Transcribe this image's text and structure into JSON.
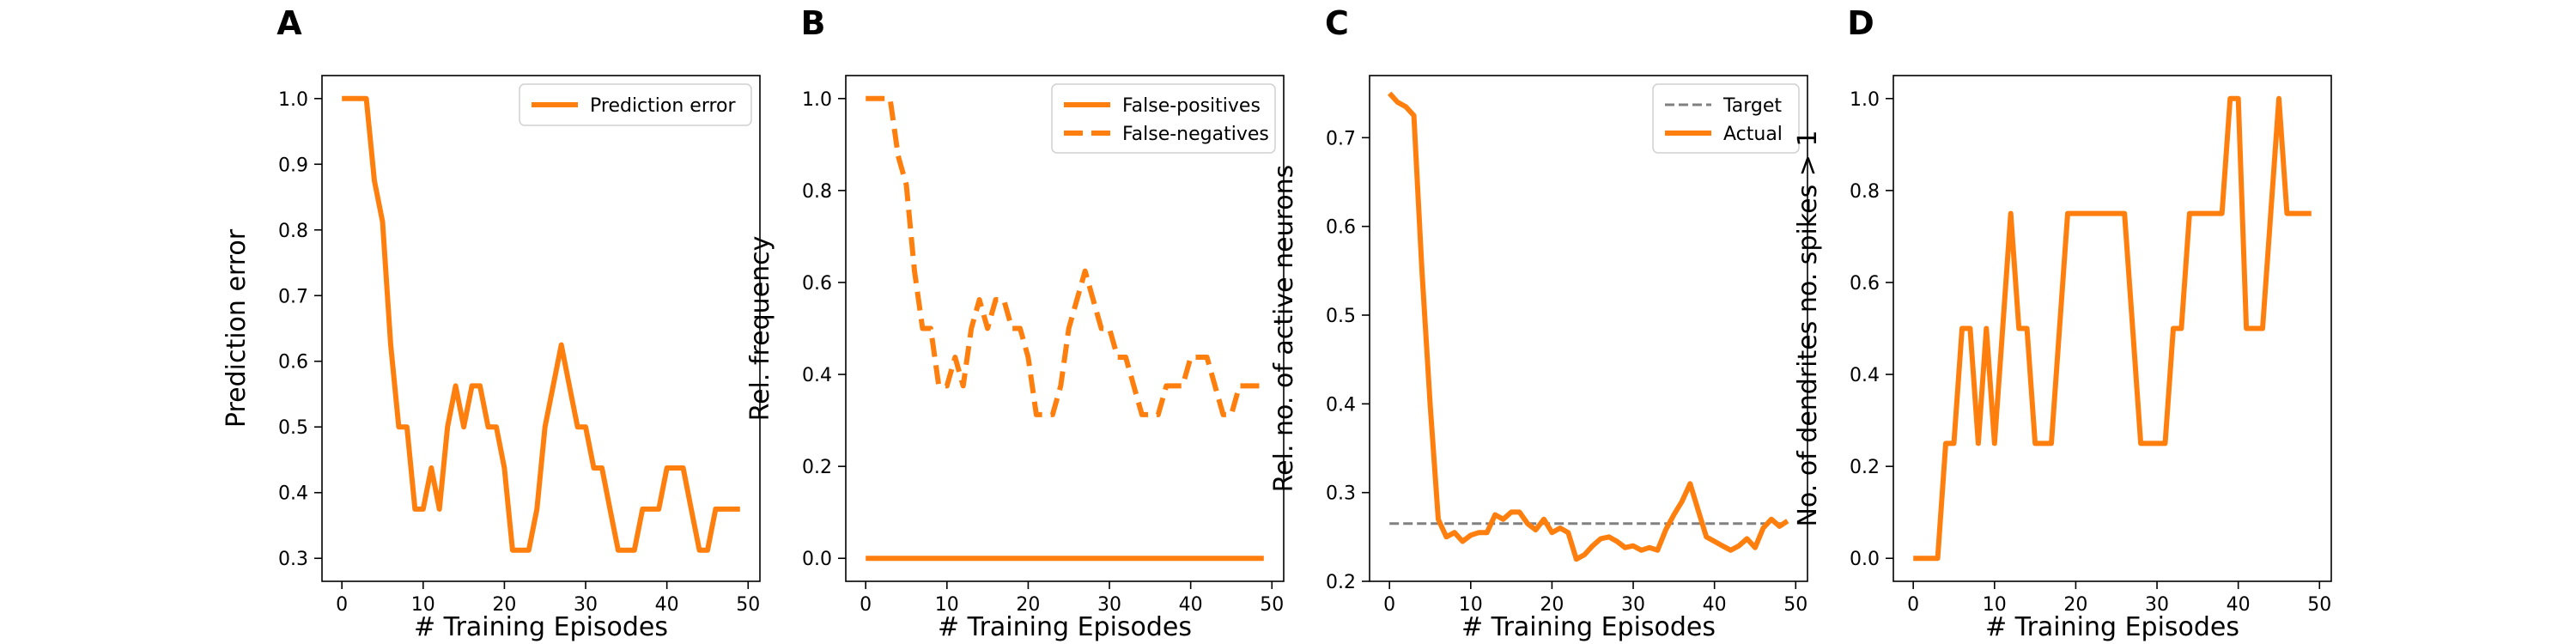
{
  "chart_data": [
    {
      "type": "line",
      "panel_label": "A",
      "xlabel": "# Training Episodes",
      "ylabel": "Prediction error",
      "xlim": [
        -2.45,
        51.45
      ],
      "ylim": [
        0.265,
        1.035
      ],
      "xticks": [
        0,
        10,
        20,
        30,
        40,
        50
      ],
      "yticks": [
        0.3,
        0.4,
        0.5,
        0.6,
        0.7,
        0.8,
        0.9,
        1.0
      ],
      "ytick_labels": [
        "0.3",
        "0.4",
        "0.5",
        "0.6",
        "0.7",
        "0.8",
        "0.9",
        "1.0"
      ],
      "legend_position": "top-right",
      "series": [
        {
          "name": "Prediction error",
          "color": "#ff7f0e",
          "dash": "solid",
          "x": [
            0,
            1,
            2,
            3,
            4,
            5,
            6,
            7,
            8,
            9,
            10,
            11,
            12,
            13,
            14,
            15,
            16,
            17,
            18,
            19,
            20,
            21,
            22,
            23,
            24,
            25,
            26,
            27,
            28,
            29,
            30,
            31,
            32,
            33,
            34,
            35,
            36,
            37,
            38,
            39,
            40,
            41,
            42,
            43,
            44,
            45,
            46,
            47,
            48,
            49
          ],
          "y": [
            1.0,
            1.0,
            1.0,
            1.0,
            0.875,
            0.8125,
            0.625,
            0.5,
            0.5,
            0.375,
            0.375,
            0.4375,
            0.375,
            0.5,
            0.5625,
            0.5,
            0.5625,
            0.5625,
            0.5,
            0.5,
            0.4375,
            0.3125,
            0.3125,
            0.3125,
            0.375,
            0.5,
            0.5625,
            0.625,
            0.5625,
            0.5,
            0.5,
            0.4375,
            0.4375,
            0.375,
            0.3125,
            0.3125,
            0.3125,
            0.375,
            0.375,
            0.375,
            0.4375,
            0.4375,
            0.4375,
            0.375,
            0.3125,
            0.3125,
            0.375,
            0.375,
            0.375,
            0.375
          ]
        }
      ]
    },
    {
      "type": "line",
      "panel_label": "B",
      "xlabel": "# Training Episodes",
      "ylabel": "Rel. frequency",
      "xlim": [
        -2.45,
        51.45
      ],
      "ylim": [
        -0.05,
        1.05
      ],
      "xticks": [
        0,
        10,
        20,
        30,
        40,
        50
      ],
      "yticks": [
        0.0,
        0.2,
        0.4,
        0.6,
        0.8,
        1.0
      ],
      "ytick_labels": [
        "0.0",
        "0.2",
        "0.4",
        "0.6",
        "0.8",
        "1.0"
      ],
      "legend_position": "top-right",
      "series": [
        {
          "name": "False-positives",
          "color": "#ff7f0e",
          "dash": "solid",
          "x": [
            0,
            49
          ],
          "y": [
            0.0,
            0.0
          ]
        },
        {
          "name": "False-negatives",
          "color": "#ff7f0e",
          "dash": "dashed",
          "x": [
            0,
            1,
            2,
            3,
            4,
            5,
            6,
            7,
            8,
            9,
            10,
            11,
            12,
            13,
            14,
            15,
            16,
            17,
            18,
            19,
            20,
            21,
            22,
            23,
            24,
            25,
            26,
            27,
            28,
            29,
            30,
            31,
            32,
            33,
            34,
            35,
            36,
            37,
            38,
            39,
            40,
            41,
            42,
            43,
            44,
            45,
            46,
            47,
            48,
            49
          ],
          "y": [
            1.0,
            1.0,
            1.0,
            1.0,
            0.875,
            0.8125,
            0.625,
            0.5,
            0.5,
            0.375,
            0.375,
            0.4375,
            0.375,
            0.5,
            0.5625,
            0.5,
            0.5625,
            0.5625,
            0.5,
            0.5,
            0.4375,
            0.3125,
            0.3125,
            0.3125,
            0.375,
            0.5,
            0.5625,
            0.625,
            0.5625,
            0.5,
            0.5,
            0.4375,
            0.4375,
            0.375,
            0.3125,
            0.3125,
            0.3125,
            0.375,
            0.375,
            0.375,
            0.4375,
            0.4375,
            0.4375,
            0.375,
            0.3125,
            0.3125,
            0.375,
            0.375,
            0.375,
            0.375
          ]
        }
      ]
    },
    {
      "type": "line",
      "panel_label": "C",
      "xlabel": "# Training Episodes",
      "ylabel": "Rel. no. of active neurons",
      "xlim": [
        -2.45,
        51.45
      ],
      "ylim": [
        0.2,
        0.77
      ],
      "xticks": [
        0,
        10,
        20,
        30,
        40,
        50
      ],
      "yticks": [
        0.2,
        0.3,
        0.4,
        0.5,
        0.6,
        0.7
      ],
      "ytick_labels": [
        "0.2",
        "0.3",
        "0.4",
        "0.5",
        "0.6",
        "0.7"
      ],
      "legend_position": "top-right",
      "series": [
        {
          "name": "Target",
          "color": "#808080",
          "dash": "dashed",
          "x": [
            0,
            49
          ],
          "y": [
            0.265,
            0.265
          ]
        },
        {
          "name": "Actual",
          "color": "#ff7f0e",
          "dash": "solid",
          "x": [
            0,
            1,
            2,
            3,
            4,
            5,
            6,
            7,
            8,
            9,
            10,
            11,
            12,
            13,
            14,
            15,
            16,
            17,
            18,
            19,
            20,
            21,
            22,
            23,
            24,
            25,
            26,
            27,
            28,
            29,
            30,
            31,
            32,
            33,
            34,
            35,
            36,
            37,
            38,
            39,
            40,
            41,
            42,
            43,
            44,
            45,
            46,
            47,
            48,
            49
          ],
          "y": [
            0.75,
            0.74,
            0.735,
            0.725,
            0.55,
            0.4,
            0.27,
            0.25,
            0.255,
            0.245,
            0.252,
            0.255,
            0.255,
            0.275,
            0.27,
            0.278,
            0.278,
            0.265,
            0.258,
            0.27,
            0.255,
            0.26,
            0.255,
            0.225,
            0.23,
            0.24,
            0.248,
            0.25,
            0.245,
            0.238,
            0.24,
            0.235,
            0.238,
            0.235,
            0.258,
            0.275,
            0.29,
            0.31,
            0.28,
            0.25,
            0.245,
            0.24,
            0.235,
            0.24,
            0.248,
            0.238,
            0.26,
            0.27,
            0.262,
            0.268
          ]
        }
      ]
    },
    {
      "type": "line",
      "panel_label": "D",
      "xlabel": "# Training Episodes",
      "ylabel": "No. of dendrites no. spikes > 1",
      "xlim": [
        -2.45,
        51.45
      ],
      "ylim": [
        -0.05,
        1.05
      ],
      "xticks": [
        0,
        10,
        20,
        30,
        40,
        50
      ],
      "yticks": [
        0.0,
        0.2,
        0.4,
        0.6,
        0.8,
        1.0
      ],
      "ytick_labels": [
        "0.0",
        "0.2",
        "0.4",
        "0.6",
        "0.8",
        "1.0"
      ],
      "legend_position": "none",
      "series": [
        {
          "color": "#ff7f0e",
          "dash": "solid",
          "x": [
            0,
            1,
            2,
            3,
            4,
            5,
            6,
            7,
            8,
            9,
            10,
            11,
            12,
            13,
            14,
            15,
            16,
            17,
            18,
            19,
            20,
            21,
            22,
            23,
            24,
            25,
            26,
            27,
            28,
            29,
            30,
            31,
            32,
            33,
            34,
            35,
            36,
            37,
            38,
            39,
            40,
            41,
            42,
            43,
            44,
            45,
            46,
            47,
            48,
            49
          ],
          "y": [
            0.0,
            0.0,
            0.0,
            0.0,
            0.25,
            0.25,
            0.5,
            0.5,
            0.25,
            0.5,
            0.25,
            0.5,
            0.75,
            0.5,
            0.5,
            0.25,
            0.25,
            0.25,
            0.5,
            0.75,
            0.75,
            0.75,
            0.75,
            0.75,
            0.75,
            0.75,
            0.75,
            0.5,
            0.25,
            0.25,
            0.25,
            0.25,
            0.5,
            0.5,
            0.75,
            0.75,
            0.75,
            0.75,
            0.75,
            1.0,
            1.0,
            0.5,
            0.5,
            0.5,
            0.75,
            1.0,
            0.75,
            0.75,
            0.75,
            0.75
          ]
        }
      ]
    }
  ]
}
